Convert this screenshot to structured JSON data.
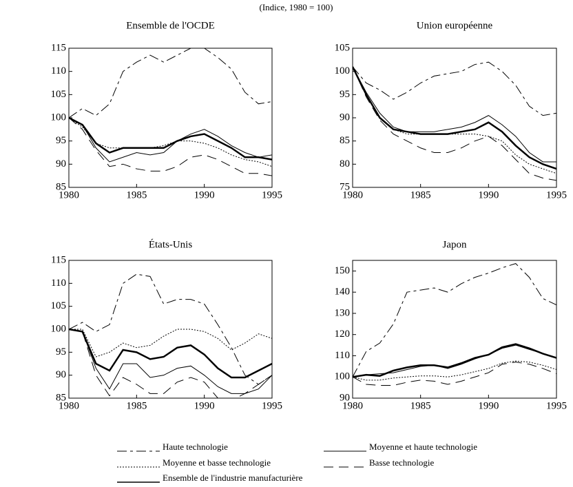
{
  "subtitle": "(Indice, 1980 = 100)",
  "chart_data": [
    {
      "type": "line",
      "title": "Ensemble de l'OCDE",
      "x": [
        1980,
        1981,
        1982,
        1983,
        1984,
        1985,
        1986,
        1987,
        1988,
        1989,
        1990,
        1991,
        1992,
        1993,
        1994,
        1995
      ],
      "xlim": [
        1980,
        1995
      ],
      "xticks": [
        1980,
        1985,
        1990,
        1995
      ],
      "ylim": [
        85,
        115
      ],
      "yticks": [
        85,
        90,
        95,
        100,
        105,
        110,
        115
      ],
      "series": [
        {
          "name": "Haute technologie",
          "color": "#000",
          "dash": "14 5 4 5",
          "width": 1,
          "values": [
            100,
            102,
            100.5,
            103,
            110,
            112,
            113.5,
            112,
            113.5,
            115,
            115,
            113,
            110.5,
            105.5,
            103,
            103.5
          ]
        },
        {
          "name": "Moyenne et haute technologie",
          "color": "#000",
          "dash": "none",
          "width": 1,
          "values": [
            100,
            98.5,
            93.5,
            90.5,
            91.5,
            92.5,
            92,
            92.5,
            95,
            96.5,
            97.5,
            96,
            94,
            92.5,
            91.5,
            92
          ]
        },
        {
          "name": "Moyenne et basse technologie",
          "color": "#000",
          "dash": "2 2",
          "width": 1,
          "values": [
            100,
            98,
            94.5,
            93.5,
            93.5,
            93.5,
            93.5,
            94,
            95,
            95,
            94.5,
            93.5,
            92,
            91,
            90.5,
            89.5
          ]
        },
        {
          "name": "Basse technologie",
          "color": "#000",
          "dash": "14 8",
          "width": 1,
          "values": [
            100,
            97.5,
            93,
            89.5,
            90,
            89,
            88.5,
            88.5,
            89.5,
            91.5,
            92,
            91,
            89.5,
            88,
            88,
            87.5
          ]
        },
        {
          "name": "Ensemble de l'industrie manufacturière",
          "color": "#000",
          "dash": "none",
          "width": 2.5,
          "values": [
            100,
            98.5,
            94.5,
            92.5,
            93.5,
            93.5,
            93.5,
            93.5,
            95,
            96,
            96.5,
            95,
            93.5,
            91.5,
            91.5,
            91
          ]
        }
      ]
    },
    {
      "type": "line",
      "title": "Union européenne",
      "x": [
        1980,
        1981,
        1982,
        1983,
        1984,
        1985,
        1986,
        1987,
        1988,
        1989,
        1990,
        1991,
        1992,
        1993,
        1994,
        1995
      ],
      "xlim": [
        1980,
        1995
      ],
      "xticks": [
        1980,
        1985,
        1990,
        1995
      ],
      "ylim": [
        75,
        105
      ],
      "yticks": [
        75,
        80,
        85,
        90,
        95,
        100,
        105
      ],
      "series": [
        {
          "name": "Haute technologie",
          "color": "#000",
          "dash": "14 5 4 5",
          "width": 1,
          "values": [
            101,
            97.5,
            96,
            94,
            95.5,
            97.5,
            99,
            99.5,
            100,
            101.5,
            102,
            100,
            97,
            92.5,
            90.5,
            91
          ]
        },
        {
          "name": "Moyenne et haute technologie",
          "color": "#000",
          "dash": "none",
          "width": 1,
          "values": [
            101,
            95.5,
            91,
            88,
            87,
            87,
            87,
            87.5,
            88,
            89,
            90.5,
            88.5,
            86,
            82.5,
            80.5,
            80.5
          ]
        },
        {
          "name": "Moyenne et basse technologie",
          "color": "#000",
          "dash": "2 2",
          "width": 1,
          "values": [
            101,
            95,
            90,
            87.5,
            86.5,
            86.5,
            86.5,
            86.5,
            86.5,
            86.5,
            86,
            85,
            82,
            80,
            79,
            78
          ]
        },
        {
          "name": "Basse technologie",
          "color": "#000",
          "dash": "14 8",
          "width": 1,
          "values": [
            101,
            94.5,
            89.5,
            86.5,
            85,
            83.5,
            82.5,
            82.5,
            83.5,
            85,
            86,
            84,
            81,
            78,
            77,
            76.5
          ]
        },
        {
          "name": "Ensemble de l'industrie manufacturière",
          "color": "#000",
          "dash": "none",
          "width": 2.5,
          "values": [
            101,
            95,
            90,
            87.5,
            87,
            86.5,
            86.5,
            86.5,
            87,
            87.5,
            89,
            87,
            84,
            81.5,
            80,
            79
          ]
        }
      ]
    },
    {
      "type": "line",
      "title": "États-Unis",
      "x": [
        1980,
        1981,
        1982,
        1983,
        1984,
        1985,
        1986,
        1987,
        1988,
        1989,
        1990,
        1991,
        1992,
        1993,
        1994,
        1995
      ],
      "xlim": [
        1980,
        1995
      ],
      "xticks": [
        1980,
        1985,
        1990,
        1995
      ],
      "ylim": [
        85,
        115
      ],
      "yticks": [
        85,
        90,
        95,
        100,
        105,
        110,
        115
      ],
      "series": [
        {
          "name": "Haute technologie",
          "color": "#000",
          "dash": "14 5 4 5",
          "width": 1,
          "values": [
            100,
            101.5,
            99.5,
            101,
            110,
            112,
            111.5,
            105.5,
            106.5,
            106.5,
            105.5,
            101,
            96,
            90,
            88,
            90
          ]
        },
        {
          "name": "Moyenne et haute technologie",
          "color": "#000",
          "dash": "none",
          "width": 1,
          "values": [
            100,
            99.5,
            91.5,
            87,
            92.5,
            92.5,
            89.5,
            90,
            91.5,
            92,
            90,
            87.5,
            86,
            86,
            87,
            90
          ]
        },
        {
          "name": "Moyenne et basse technologie",
          "color": "#000",
          "dash": "2 2",
          "width": 1,
          "values": [
            100,
            100,
            94,
            95,
            97,
            96,
            96.5,
            98.5,
            100,
            100,
            99.5,
            98,
            95.5,
            97,
            99,
            98
          ]
        },
        {
          "name": "Basse technologie",
          "color": "#000",
          "dash": "14 8",
          "width": 1,
          "values": [
            100,
            99.5,
            90,
            85.5,
            89.5,
            88,
            86,
            86,
            88.5,
            89.5,
            88.5,
            85,
            84.5,
            86,
            88,
            90
          ]
        },
        {
          "name": "Ensemble de l'industrie manufacturière",
          "color": "#000",
          "dash": "none",
          "width": 2.5,
          "values": [
            100,
            99.5,
            92.5,
            91,
            95.5,
            95,
            93.5,
            94,
            96,
            96.5,
            94.5,
            91.5,
            89.5,
            89.5,
            91,
            92.5
          ]
        }
      ]
    },
    {
      "type": "line",
      "title": "Japon",
      "x": [
        1980,
        1981,
        1982,
        1983,
        1984,
        1985,
        1986,
        1987,
        1988,
        1989,
        1990,
        1991,
        1992,
        1993,
        1994,
        1995
      ],
      "xlim": [
        1980,
        1995
      ],
      "xticks": [
        1980,
        1985,
        1990,
        1995
      ],
      "ylim": [
        90,
        155
      ],
      "yticks": [
        90,
        100,
        110,
        120,
        130,
        140,
        150
      ],
      "series": [
        {
          "name": "Haute technologie",
          "color": "#000",
          "dash": "14 5 4 5",
          "width": 1,
          "values": [
            100,
            112,
            116,
            125,
            140,
            141,
            142,
            140,
            144,
            147,
            149,
            151.5,
            153.5,
            147,
            137,
            134
          ]
        },
        {
          "name": "Moyenne et haute technologie",
          "color": "#000",
          "dash": "none",
          "width": 1,
          "values": [
            100,
            101,
            101.5,
            102,
            103.5,
            105,
            105.5,
            104,
            106,
            108.5,
            110.5,
            113.5,
            115,
            113,
            111,
            109
          ]
        },
        {
          "name": "Moyenne et basse technologie",
          "color": "#000",
          "dash": "2 2",
          "width": 1,
          "values": [
            100,
            98.5,
            98.5,
            99.5,
            100,
            100.5,
            100.5,
            100,
            101,
            102.5,
            104,
            106.5,
            107.5,
            107,
            105.5,
            103.5
          ]
        },
        {
          "name": "Basse technologie",
          "color": "#000",
          "dash": "14 8",
          "width": 1,
          "values": [
            100,
            96.5,
            96,
            96,
            97.5,
            98.5,
            98,
            96.5,
            98,
            100,
            102,
            106,
            107,
            106,
            104,
            101.5
          ]
        },
        {
          "name": "Ensemble de l'industrie manufacturière",
          "color": "#000",
          "dash": "none",
          "width": 2.5,
          "values": [
            100,
            101,
            100.5,
            103,
            104.5,
            105.5,
            105.5,
            104.5,
            106.5,
            109,
            110.5,
            114,
            115.5,
            113.5,
            111,
            109
          ]
        }
      ]
    }
  ]
}
